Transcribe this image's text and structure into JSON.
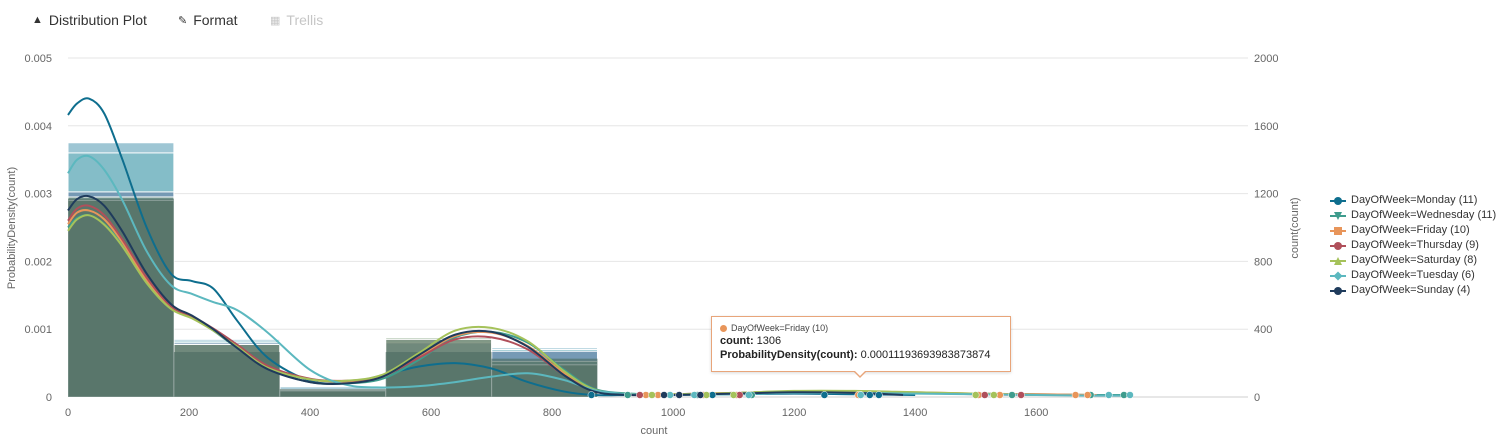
{
  "toolbar": {
    "distribution_plot": "Distribution Plot",
    "format": "Format",
    "trellis": "Trellis"
  },
  "chart_data": {
    "type": "bar",
    "xlabel": "count",
    "ylabel": "ProbabilityDensity(count)",
    "y2label": "count(count)",
    "xlim": [
      0,
      1950
    ],
    "ylim": [
      0,
      0.005
    ],
    "y2lim": [
      0,
      2000
    ],
    "x_ticks": [
      0,
      200,
      400,
      600,
      800,
      1000,
      1200,
      1400,
      1600
    ],
    "y_ticks": [
      0,
      0.001,
      0.002,
      0.003,
      0.004,
      0.005
    ],
    "y_tick_labels": [
      "0",
      "0.001",
      "0.002",
      "0.003",
      "0.004",
      "0.005"
    ],
    "y2_ticks": [
      0,
      400,
      800,
      1200,
      1600,
      2000
    ],
    "grid": true,
    "legend_position": "right",
    "bin_edges": [
      0,
      175,
      350,
      525,
      700,
      875
    ],
    "histogram_counts": [
      1500,
      340,
      60,
      340,
      290
    ],
    "histogram_layers": [
      {
        "values": [
          1500,
          340,
          60,
          340,
          290
        ],
        "color": "#4f97b0"
      },
      {
        "values": [
          1440,
          330,
          45,
          330,
          280
        ],
        "color": "#6fb6bd"
      },
      {
        "values": [
          1210,
          320,
          40,
          320,
          270
        ],
        "color": "#6b7ea6"
      },
      {
        "values": [
          1180,
          310,
          38,
          350,
          210
        ],
        "color": "#7b9c79"
      },
      {
        "values": [
          1160,
          310,
          36,
          340,
          190
        ],
        "color": "#6a7a68"
      }
    ],
    "series": [
      {
        "name": "DayOfWeek=Monday (11)",
        "color": "#0e6e8e",
        "marker": "circle",
        "x": [
          0,
          15,
          35,
          60,
          90,
          130,
          170,
          205,
          240,
          280,
          330,
          400,
          460,
          520,
          580,
          640,
          700,
          760,
          820,
          870,
          930,
          1000,
          1100,
          1200,
          1300,
          1400
        ],
        "y": [
          0.00416,
          0.00433,
          0.0044,
          0.00418,
          0.0035,
          0.0025,
          0.00182,
          0.00171,
          0.0016,
          0.00112,
          0.00058,
          0.00024,
          0.00021,
          0.00032,
          0.00045,
          0.0005,
          0.00042,
          0.00022,
          8e-05,
          3e-05,
          3e-05,
          3e-05,
          4e-05,
          5e-05,
          4e-05,
          3e-05
        ],
        "points": [
          865,
          1045,
          1065,
          1250,
          1310,
          1325,
          1340
        ]
      },
      {
        "name": "DayOfWeek=Wednesday (11)",
        "color": "#3e9c8d",
        "marker": "triangle-down",
        "x": [
          0,
          15,
          35,
          60,
          90,
          130,
          170,
          205,
          240,
          280,
          330,
          400,
          460,
          520,
          580,
          640,
          700,
          760,
          820,
          870,
          930,
          1000,
          1100,
          1200,
          1300,
          1400,
          1500,
          1600,
          1700,
          1750
        ],
        "y": [
          0.0025,
          0.00264,
          0.00268,
          0.00255,
          0.00225,
          0.0017,
          0.00135,
          0.00118,
          0.00098,
          0.00072,
          0.00042,
          0.00022,
          0.0002,
          0.00027,
          0.00055,
          0.00088,
          0.00096,
          0.0008,
          0.0004,
          0.00012,
          5e-05,
          4e-05,
          5e-05,
          7e-05,
          7e-05,
          6e-05,
          5e-05,
          4e-05,
          3e-05,
          3e-05
        ],
        "points": [
          925,
          1040,
          1130,
          1310,
          1500,
          1560,
          1690,
          1745
        ]
      },
      {
        "name": "DayOfWeek=Friday (10)",
        "color": "#e8955a",
        "marker": "square",
        "x": [
          0,
          15,
          35,
          60,
          90,
          130,
          170,
          205,
          240,
          280,
          330,
          400,
          460,
          520,
          580,
          640,
          700,
          760,
          820,
          870,
          930,
          1000,
          1100,
          1200,
          1300,
          1400,
          1500,
          1600,
          1700
        ],
        "y": [
          0.00255,
          0.00272,
          0.00275,
          0.00262,
          0.00228,
          0.00172,
          0.00132,
          0.00118,
          0.001,
          0.00075,
          0.00044,
          0.00026,
          0.00023,
          0.0003,
          0.0006,
          0.0009,
          0.00095,
          0.00075,
          0.00035,
          0.0001,
          4e-05,
          4e-05,
          6e-05,
          8e-05,
          8e-05,
          7e-05,
          5e-05,
          4e-05,
          3e-05
        ],
        "points": [
          955,
          975,
          1010,
          1050,
          1105,
          1306,
          1505,
          1540,
          1665,
          1685
        ]
      },
      {
        "name": "DayOfWeek=Thursday (9)",
        "color": "#b04f5a",
        "marker": "circle",
        "x": [
          0,
          15,
          35,
          60,
          90,
          130,
          170,
          205,
          240,
          280,
          330,
          400,
          460,
          520,
          580,
          640,
          700,
          760,
          820,
          870,
          930,
          1000,
          1100,
          1200,
          1300,
          1400,
          1500,
          1600
        ],
        "y": [
          0.0026,
          0.00278,
          0.00282,
          0.00268,
          0.00232,
          0.00176,
          0.00134,
          0.00119,
          0.00101,
          0.00077,
          0.00046,
          0.00027,
          0.00024,
          0.00031,
          0.00058,
          0.00085,
          0.00088,
          0.0007,
          0.00032,
          9e-05,
          4e-05,
          4e-05,
          6e-05,
          8e-05,
          8e-05,
          6e-05,
          4e-05,
          3e-05
        ],
        "points": [
          945,
          1045,
          1110,
          1515,
          1575
        ]
      },
      {
        "name": "DayOfWeek=Saturday (8)",
        "color": "#a5c25a",
        "marker": "triangle-up",
        "x": [
          0,
          15,
          35,
          60,
          90,
          130,
          170,
          205,
          240,
          280,
          330,
          400,
          460,
          520,
          580,
          640,
          700,
          760,
          820,
          870,
          930,
          1000,
          1100,
          1200,
          1300,
          1400,
          1500,
          1600
        ],
        "y": [
          0.00245,
          0.00262,
          0.00268,
          0.00254,
          0.00222,
          0.00168,
          0.0013,
          0.00116,
          0.00098,
          0.00074,
          0.00043,
          0.00026,
          0.00024,
          0.00033,
          0.00065,
          0.00098,
          0.00102,
          0.00082,
          0.00038,
          0.00011,
          4e-05,
          4e-05,
          6e-05,
          9e-05,
          9e-05,
          7e-05,
          5e-05,
          3e-05
        ],
        "points": [
          965,
          1055,
          1100,
          1500,
          1530
        ]
      },
      {
        "name": "DayOfWeek=Tuesday (6)",
        "color": "#5cb8bf",
        "marker": "diamond",
        "x": [
          0,
          15,
          35,
          60,
          90,
          130,
          170,
          205,
          240,
          280,
          330,
          400,
          460,
          520,
          580,
          640,
          700,
          760,
          820,
          870,
          930,
          1000,
          1100,
          1200,
          1300,
          1400,
          1500,
          1600,
          1700,
          1760
        ],
        "y": [
          0.0033,
          0.0035,
          0.00355,
          0.00335,
          0.0029,
          0.00215,
          0.00165,
          0.00152,
          0.0014,
          0.00128,
          0.00095,
          0.0004,
          0.00018,
          0.00014,
          0.00016,
          0.00022,
          0.0003,
          0.00035,
          0.00025,
          0.0001,
          4e-05,
          3e-05,
          4e-05,
          6e-05,
          6e-05,
          5e-05,
          4e-05,
          3e-05,
          2e-05,
          2e-05
        ],
        "points": [
          995,
          1035,
          1125,
          1310,
          1720,
          1755
        ]
      },
      {
        "name": "DayOfWeek=Sunday (4)",
        "color": "#1f3b5c",
        "marker": "circle",
        "x": [
          0,
          15,
          35,
          60,
          90,
          130,
          170,
          205,
          240,
          280,
          330,
          400,
          460,
          520,
          580,
          640,
          700,
          760,
          820,
          870,
          930,
          1000,
          1100,
          1200,
          1300,
          1380
        ],
        "y": [
          0.00275,
          0.00292,
          0.00296,
          0.00282,
          0.00244,
          0.00182,
          0.00137,
          0.0012,
          0.001,
          0.00072,
          0.00041,
          0.00022,
          0.0002,
          0.0003,
          0.00062,
          0.00092,
          0.00096,
          0.00074,
          0.00032,
          8e-05,
          3e-05,
          3e-05,
          5e-05,
          7e-05,
          6e-05,
          3e-05
        ],
        "points": [
          985,
          1010,
          1045
        ]
      }
    ]
  },
  "tooltip": {
    "series": "DayOfWeek=Friday (10)",
    "count_label": "count:",
    "count_value": "1306",
    "density_label": "ProbabilityDensity(count):",
    "density_value": "0.00011193693983873874"
  }
}
